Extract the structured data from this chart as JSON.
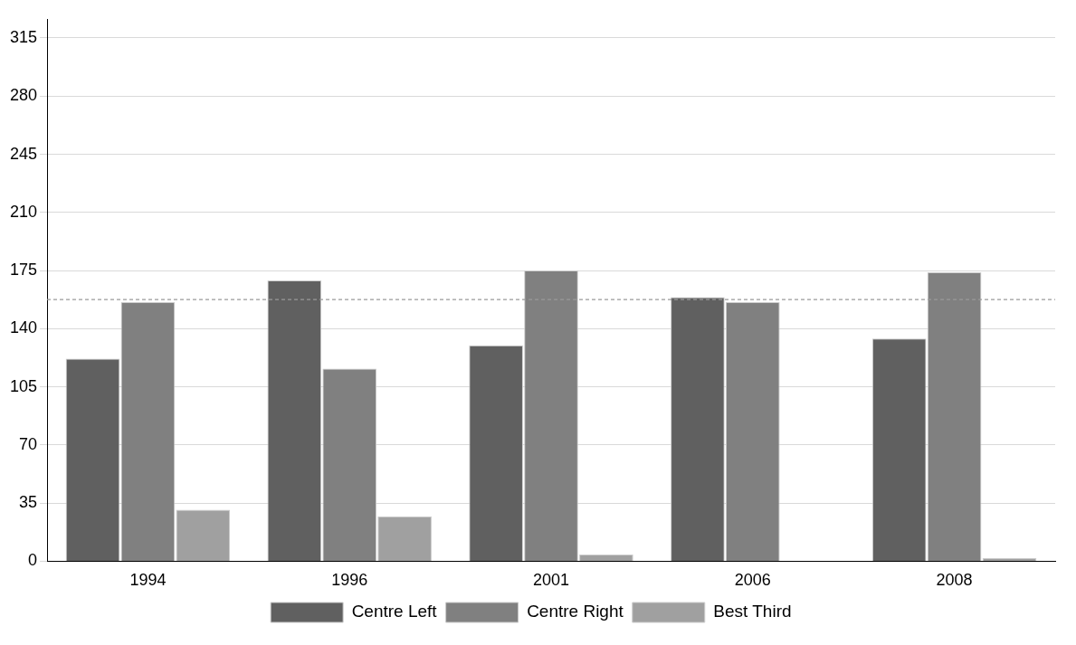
{
  "chart_data": {
    "type": "bar",
    "categories": [
      "1994",
      "1996",
      "2001",
      "2006",
      "2008"
    ],
    "series": [
      {
        "name": "Centre Left",
        "color": "#606060",
        "values": [
          122,
          169,
          130,
          159,
          134
        ]
      },
      {
        "name": "Centre Right",
        "color": "#808080",
        "values": [
          156,
          116,
          175,
          156,
          174
        ]
      },
      {
        "name": "Best Third",
        "color": "#a0a0a0",
        "values": [
          31,
          27,
          4,
          0,
          2
        ]
      }
    ],
    "ylim": [
      0,
      326
    ],
    "yticks": [
      0,
      35,
      70,
      105,
      140,
      175,
      210,
      245,
      280,
      315
    ],
    "grid": "y",
    "legend": "bottom",
    "ref_lines": [
      {
        "axis": "y",
        "value": 157.5,
        "color": "#999999",
        "line_style": "dashed"
      }
    ]
  }
}
